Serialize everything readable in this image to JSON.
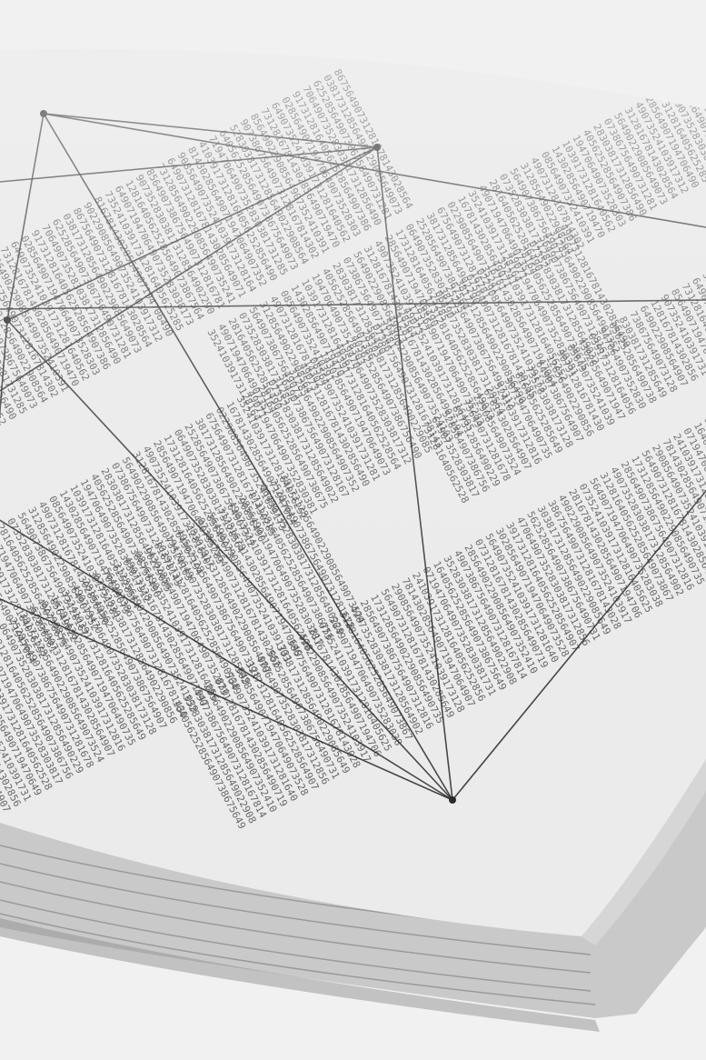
{
  "photo": {
    "subject": "open-book-printed-digit-columns-with-line-diagram",
    "colors": {
      "background": "#f1f1f1",
      "page": "#ebebeb",
      "page_shadow": "#d6d6d6",
      "band": "#dadada",
      "digits": "#3a3a3a",
      "lines": "#2a2a2a",
      "edge": "#c9c9c9"
    },
    "digit_source": "8301472605918273640195827340615093847261059384726015938472601593847260159384726051938472605193847260"
  }
}
